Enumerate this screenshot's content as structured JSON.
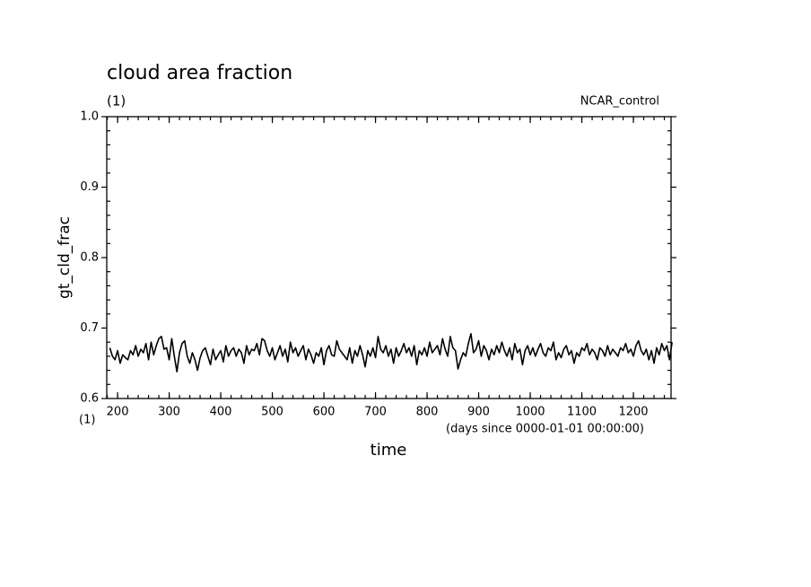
{
  "chart_data": {
    "type": "line",
    "title": "cloud area fraction",
    "y_units": "(1)",
    "annotation": "NCAR_control",
    "ylabel": "gt_cld_frac",
    "xlabel": "time",
    "x_units": "(1)",
    "x_note": "(days since 0000-01-01 00:00:00)",
    "xlim": [
      179,
      1273
    ],
    "ylim": [
      0.6,
      1
    ],
    "xticks": [
      200,
      300,
      400,
      500,
      600,
      700,
      800,
      900,
      1000,
      1100,
      1200
    ],
    "yticks": [
      0.6,
      0.7,
      0.8,
      0.9,
      {
        "value": 1,
        "label": "1.0"
      }
    ],
    "grid": false,
    "series": [
      {
        "color": "#000000",
        "x": [
          185,
          190,
          195,
          200,
          205,
          210,
          215,
          220,
          225,
          230,
          235,
          240,
          245,
          250,
          255,
          260,
          265,
          270,
          275,
          280,
          285,
          290,
          295,
          300,
          305,
          310,
          315,
          320,
          325,
          330,
          335,
          340,
          345,
          350,
          355,
          360,
          365,
          370,
          375,
          380,
          385,
          390,
          395,
          400,
          405,
          410,
          415,
          420,
          425,
          430,
          435,
          440,
          445,
          450,
          455,
          460,
          465,
          470,
          475,
          480,
          485,
          490,
          495,
          500,
          505,
          510,
          515,
          520,
          525,
          530,
          535,
          540,
          545,
          550,
          555,
          560,
          565,
          570,
          575,
          580,
          585,
          590,
          595,
          600,
          605,
          610,
          615,
          620,
          625,
          630,
          635,
          640,
          645,
          650,
          655,
          660,
          665,
          670,
          675,
          680,
          685,
          690,
          695,
          700,
          705,
          710,
          715,
          720,
          725,
          730,
          735,
          740,
          745,
          750,
          755,
          760,
          765,
          770,
          775,
          780,
          785,
          790,
          795,
          800,
          805,
          810,
          815,
          820,
          825,
          830,
          835,
          840,
          845,
          850,
          855,
          860,
          865,
          870,
          875,
          880,
          885,
          890,
          895,
          900,
          905,
          910,
          915,
          920,
          925,
          930,
          935,
          940,
          945,
          950,
          955,
          960,
          965,
          970,
          975,
          980,
          985,
          990,
          995,
          1000,
          1005,
          1010,
          1015,
          1020,
          1025,
          1030,
          1035,
          1040,
          1045,
          1050,
          1055,
          1060,
          1065,
          1070,
          1075,
          1080,
          1085,
          1090,
          1095,
          1100,
          1105,
          1110,
          1115,
          1120,
          1125,
          1130,
          1135,
          1140,
          1145,
          1150,
          1155,
          1160,
          1165,
          1170,
          1175,
          1180,
          1185,
          1190,
          1195,
          1200,
          1205,
          1210,
          1215,
          1220,
          1225,
          1230,
          1235,
          1240,
          1245,
          1250,
          1255,
          1260,
          1265,
          1270,
          1275
        ],
        "values": [
          0.672,
          0.66,
          0.655,
          0.668,
          0.65,
          0.662,
          0.658,
          0.655,
          0.668,
          0.662,
          0.675,
          0.66,
          0.67,
          0.665,
          0.678,
          0.655,
          0.68,
          0.662,
          0.675,
          0.685,
          0.688,
          0.67,
          0.672,
          0.655,
          0.685,
          0.66,
          0.638,
          0.665,
          0.678,
          0.682,
          0.66,
          0.65,
          0.665,
          0.655,
          0.64,
          0.658,
          0.668,
          0.672,
          0.66,
          0.648,
          0.67,
          0.655,
          0.662,
          0.668,
          0.652,
          0.675,
          0.66,
          0.668,
          0.672,
          0.66,
          0.67,
          0.665,
          0.65,
          0.675,
          0.662,
          0.67,
          0.668,
          0.678,
          0.662,
          0.685,
          0.682,
          0.668,
          0.66,
          0.672,
          0.655,
          0.665,
          0.675,
          0.66,
          0.67,
          0.652,
          0.68,
          0.665,
          0.672,
          0.66,
          0.668,
          0.675,
          0.655,
          0.67,
          0.662,
          0.65,
          0.665,
          0.66,
          0.672,
          0.648,
          0.668,
          0.675,
          0.662,
          0.66,
          0.682,
          0.67,
          0.665,
          0.66,
          0.655,
          0.672,
          0.65,
          0.668,
          0.66,
          0.675,
          0.662,
          0.645,
          0.668,
          0.66,
          0.672,
          0.658,
          0.688,
          0.67,
          0.665,
          0.675,
          0.66,
          0.67,
          0.65,
          0.672,
          0.66,
          0.668,
          0.678,
          0.665,
          0.672,
          0.66,
          0.675,
          0.648,
          0.668,
          0.662,
          0.672,
          0.66,
          0.68,
          0.665,
          0.67,
          0.675,
          0.662,
          0.685,
          0.67,
          0.66,
          0.688,
          0.672,
          0.668,
          0.642,
          0.655,
          0.665,
          0.66,
          0.678,
          0.692,
          0.665,
          0.67,
          0.682,
          0.66,
          0.675,
          0.668,
          0.655,
          0.67,
          0.662,
          0.675,
          0.665,
          0.68,
          0.668,
          0.66,
          0.672,
          0.655,
          0.678,
          0.665,
          0.67,
          0.648,
          0.668,
          0.675,
          0.662,
          0.672,
          0.66,
          0.67,
          0.678,
          0.665,
          0.66,
          0.672,
          0.668,
          0.68,
          0.655,
          0.665,
          0.658,
          0.67,
          0.675,
          0.662,
          0.668,
          0.65,
          0.665,
          0.66,
          0.672,
          0.668,
          0.678,
          0.662,
          0.67,
          0.665,
          0.655,
          0.672,
          0.668,
          0.66,
          0.675,
          0.662,
          0.67,
          0.665,
          0.66,
          0.672,
          0.668,
          0.678,
          0.665,
          0.67,
          0.66,
          0.675,
          0.682,
          0.668,
          0.662,
          0.67,
          0.655,
          0.668,
          0.65,
          0.672,
          0.662,
          0.678,
          0.668,
          0.675,
          0.655,
          0.68
        ]
      }
    ]
  }
}
